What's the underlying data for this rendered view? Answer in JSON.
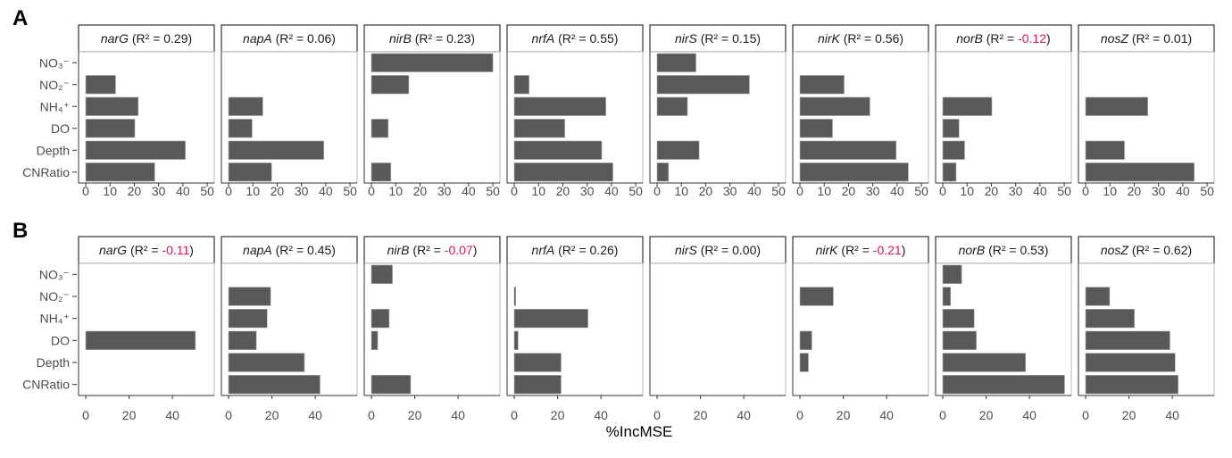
{
  "chart_data": [
    {
      "type": "bar",
      "panel_label": "A",
      "orientation": "horizontal",
      "categories": [
        "NO₃⁻",
        "NO₂⁻",
        "NH₄⁺",
        "DO",
        "Depth",
        "CNRatio"
      ],
      "xlim": [
        0,
        50
      ],
      "xticks": [
        "0",
        "10",
        "20",
        "30",
        "40",
        "50"
      ],
      "bar_color": "#595959",
      "negative_color": "#e0125f",
      "facets": [
        {
          "gene": "narG",
          "r2": "0.29",
          "values": [
            null,
            12.3,
            21.6,
            20.2,
            41.0,
            28.4
          ]
        },
        {
          "gene": "napA",
          "r2": "0.06",
          "values": [
            null,
            null,
            14.1,
            9.7,
            39.2,
            17.7
          ]
        },
        {
          "gene": "nirB",
          "r2": "0.23",
          "values": [
            50.0,
            15.4,
            null,
            6.9,
            null,
            8.0
          ]
        },
        {
          "gene": "nrfA",
          "r2": "0.55",
          "values": [
            null,
            6.1,
            37.7,
            20.8,
            36.0,
            40.6
          ]
        },
        {
          "gene": "nirS",
          "r2": "0.15",
          "values": [
            16.0,
            38.0,
            12.5,
            null,
            17.3,
            4.7
          ]
        },
        {
          "gene": "nirK",
          "r2": "0.56",
          "values": [
            null,
            18.2,
            28.8,
            13.4,
            39.6,
            44.6
          ]
        },
        {
          "gene": "norB",
          "r2": "-0.12",
          "values": [
            null,
            null,
            20.2,
            6.7,
            9.0,
            5.5
          ]
        },
        {
          "gene": "nosZ",
          "r2": "0.01",
          "values": [
            null,
            null,
            25.6,
            null,
            16.0,
            44.7
          ]
        }
      ]
    },
    {
      "type": "bar",
      "panel_label": "B",
      "orientation": "horizontal",
      "categories": [
        "NO₃⁻",
        "NO₂⁻",
        "NH₄⁺",
        "DO",
        "Depth",
        "CNRatio"
      ],
      "xlim": [
        0,
        56
      ],
      "xticks": [
        "0",
        "20",
        "40"
      ],
      "bar_color": "#595959",
      "negative_color": "#e0125f",
      "facets": [
        {
          "gene": "narG",
          "r2": "-0.11",
          "values": [
            null,
            null,
            null,
            50.6,
            null,
            null
          ]
        },
        {
          "gene": "napA",
          "r2": "0.45",
          "values": [
            null,
            19.4,
            17.8,
            12.8,
            35.0,
            42.2
          ]
        },
        {
          "gene": "nirB",
          "r2": "-0.07",
          "values": [
            9.7,
            null,
            8.2,
            2.9,
            null,
            18.1
          ]
        },
        {
          "gene": "nrfA",
          "r2": "0.26",
          "values": [
            null,
            0.7,
            34.0,
            1.8,
            21.6,
            21.6
          ]
        },
        {
          "gene": "nirS",
          "r2": "0.00",
          "values": [
            null,
            null,
            null,
            null,
            null,
            null
          ]
        },
        {
          "gene": "nirK",
          "r2": "-0.21",
          "values": [
            null,
            15.4,
            null,
            5.5,
            3.9,
            null
          ]
        },
        {
          "gene": "norB",
          "r2": "0.53",
          "values": [
            8.7,
            3.6,
            14.5,
            15.5,
            38.2,
            56.2
          ]
        },
        {
          "gene": "nosZ",
          "r2": "0.62",
          "values": [
            null,
            11.1,
            22.5,
            38.9,
            41.3,
            42.7
          ]
        }
      ]
    }
  ],
  "xlabel": "%IncMSE"
}
